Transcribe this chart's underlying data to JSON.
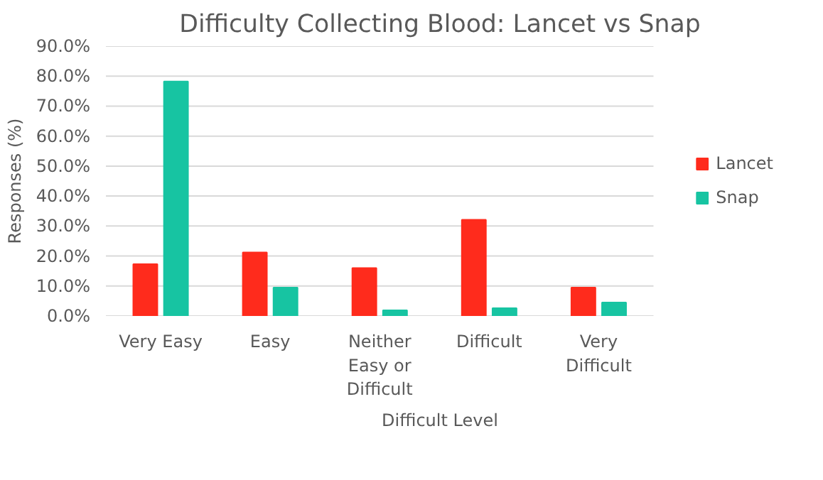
{
  "chart_data": {
    "type": "bar",
    "title": "Difficulty Collecting Blood: Lancet vs Snap",
    "xlabel": "Difficult Level",
    "ylabel": "Responses (%)",
    "categories": [
      "Very Easy",
      "Easy",
      "Neither\nEasy or\nDifficult",
      "Difficult",
      "Very\nDifficult"
    ],
    "series": [
      {
        "name": "Lancet",
        "color": "#ff2b1c",
        "values": [
          17.3,
          21.2,
          16.0,
          32.1,
          9.5
        ]
      },
      {
        "name": "Snap",
        "color": "#17c4a2",
        "values": [
          78.2,
          9.5,
          1.9,
          2.6,
          4.5
        ]
      }
    ],
    "ylim": [
      0,
      90
    ],
    "yticks": [
      {
        "value": 0,
        "label": "0.0%"
      },
      {
        "value": 10,
        "label": "10.0%"
      },
      {
        "value": 20,
        "label": "20.0%"
      },
      {
        "value": 30,
        "label": "30.0%"
      },
      {
        "value": 40,
        "label": "40.0%"
      },
      {
        "value": 50,
        "label": "50.0%"
      },
      {
        "value": 60,
        "label": "60.0%"
      },
      {
        "value": 70,
        "label": "70.0%"
      },
      {
        "value": 80,
        "label": "80.0%"
      },
      {
        "value": 90,
        "label": "90.0%"
      }
    ],
    "grid": "y",
    "legend": "right"
  }
}
